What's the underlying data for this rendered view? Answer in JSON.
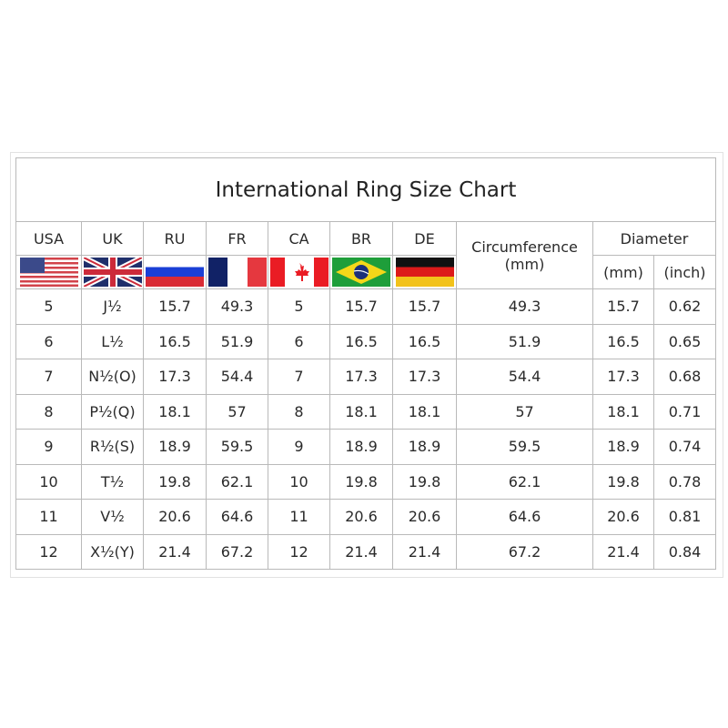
{
  "title": "International Ring Size Chart",
  "headers": [
    "USA",
    "UK",
    "RU",
    "FR",
    "CA",
    "BR",
    "DE"
  ],
  "circumference_header": "Circumference\n(mm)",
  "circumference_label": "Circumference",
  "circumference_unit": "(mm)",
  "diameter_header": "Diameter",
  "diameter_mm": "(mm)",
  "diameter_inch": "(inch)",
  "flags": [
    "us-flag",
    "uk-flag",
    "russia-flag",
    "france-flag",
    "canada-flag",
    "brazil-flag",
    "germany-flag"
  ],
  "rows": [
    [
      "5",
      "J½",
      "15.7",
      "49.3",
      "5",
      "15.7",
      "15.7",
      "49.3",
      "15.7",
      "0.62"
    ],
    [
      "6",
      "L½",
      "16.5",
      "51.9",
      "6",
      "16.5",
      "16.5",
      "51.9",
      "16.5",
      "0.65"
    ],
    [
      "7",
      "N½(O)",
      "17.3",
      "54.4",
      "7",
      "17.3",
      "17.3",
      "54.4",
      "17.3",
      "0.68"
    ],
    [
      "8",
      "P½(Q)",
      "18.1",
      "57",
      "8",
      "18.1",
      "18.1",
      "57",
      "18.1",
      "0.71"
    ],
    [
      "9",
      "R½(S)",
      "18.9",
      "59.5",
      "9",
      "18.9",
      "18.9",
      "59.5",
      "18.9",
      "0.74"
    ],
    [
      "10",
      "T½",
      "19.8",
      "62.1",
      "10",
      "19.8",
      "19.8",
      "62.1",
      "19.8",
      "0.78"
    ],
    [
      "11",
      "V½",
      "20.6",
      "64.6",
      "11",
      "20.6",
      "20.6",
      "64.6",
      "20.6",
      "0.81"
    ],
    [
      "12",
      "X½(Y)",
      "21.4",
      "67.2",
      "12",
      "21.4",
      "21.4",
      "67.2",
      "21.4",
      "0.84"
    ]
  ]
}
